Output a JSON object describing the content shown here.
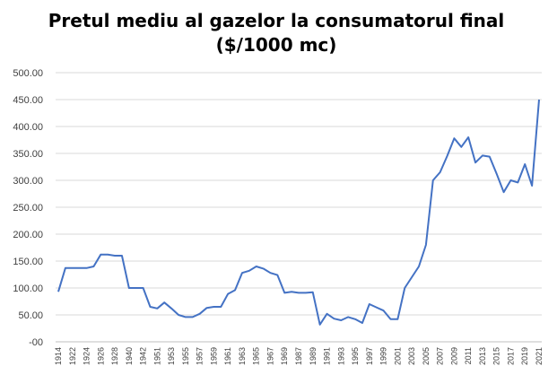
{
  "chart_data": {
    "type": "line",
    "title_line1": "Pretul mediu al gazelor la consumatorul final",
    "title_line2": "($/1000 mc)",
    "xlabel": "",
    "ylabel": "",
    "ylim": [
      0,
      500
    ],
    "yticks": [
      "-00",
      "50.00",
      "100.00",
      "150.00",
      "200.00",
      "250.00",
      "300.00",
      "350.00",
      "400.00",
      "450.00",
      "500.00"
    ],
    "grid": true,
    "legend": "none",
    "line_color": "#4472c4",
    "x_tick_labels": [
      "1914",
      "1922",
      "1924",
      "1926",
      "1928",
      "1940",
      "1942",
      "1951",
      "1953",
      "1955",
      "1957",
      "1959",
      "1961",
      "1963",
      "1965",
      "1967",
      "1969",
      "1987",
      "1989",
      "1991",
      "1993",
      "1995",
      "1997",
      "1999",
      "2001",
      "2003",
      "2005",
      "2007",
      "2009",
      "2011",
      "2013",
      "2015",
      "2017",
      "2019",
      "2021"
    ],
    "series": [
      {
        "values": [
          93,
          137,
          137,
          137,
          137,
          140,
          162,
          162,
          160,
          160,
          100,
          100,
          100,
          65,
          62,
          73,
          62,
          50,
          46,
          46,
          52,
          63,
          65,
          65,
          89,
          96,
          128,
          132,
          140,
          136,
          128,
          124,
          91,
          93,
          91,
          91,
          92,
          32,
          52,
          43,
          40,
          46,
          42,
          35,
          70,
          64,
          58,
          42,
          42,
          100,
          120,
          140,
          180,
          300,
          315,
          345,
          378,
          362,
          380,
          333,
          346,
          344,
          312,
          278,
          300,
          296,
          330,
          290,
          450
        ]
      }
    ]
  }
}
